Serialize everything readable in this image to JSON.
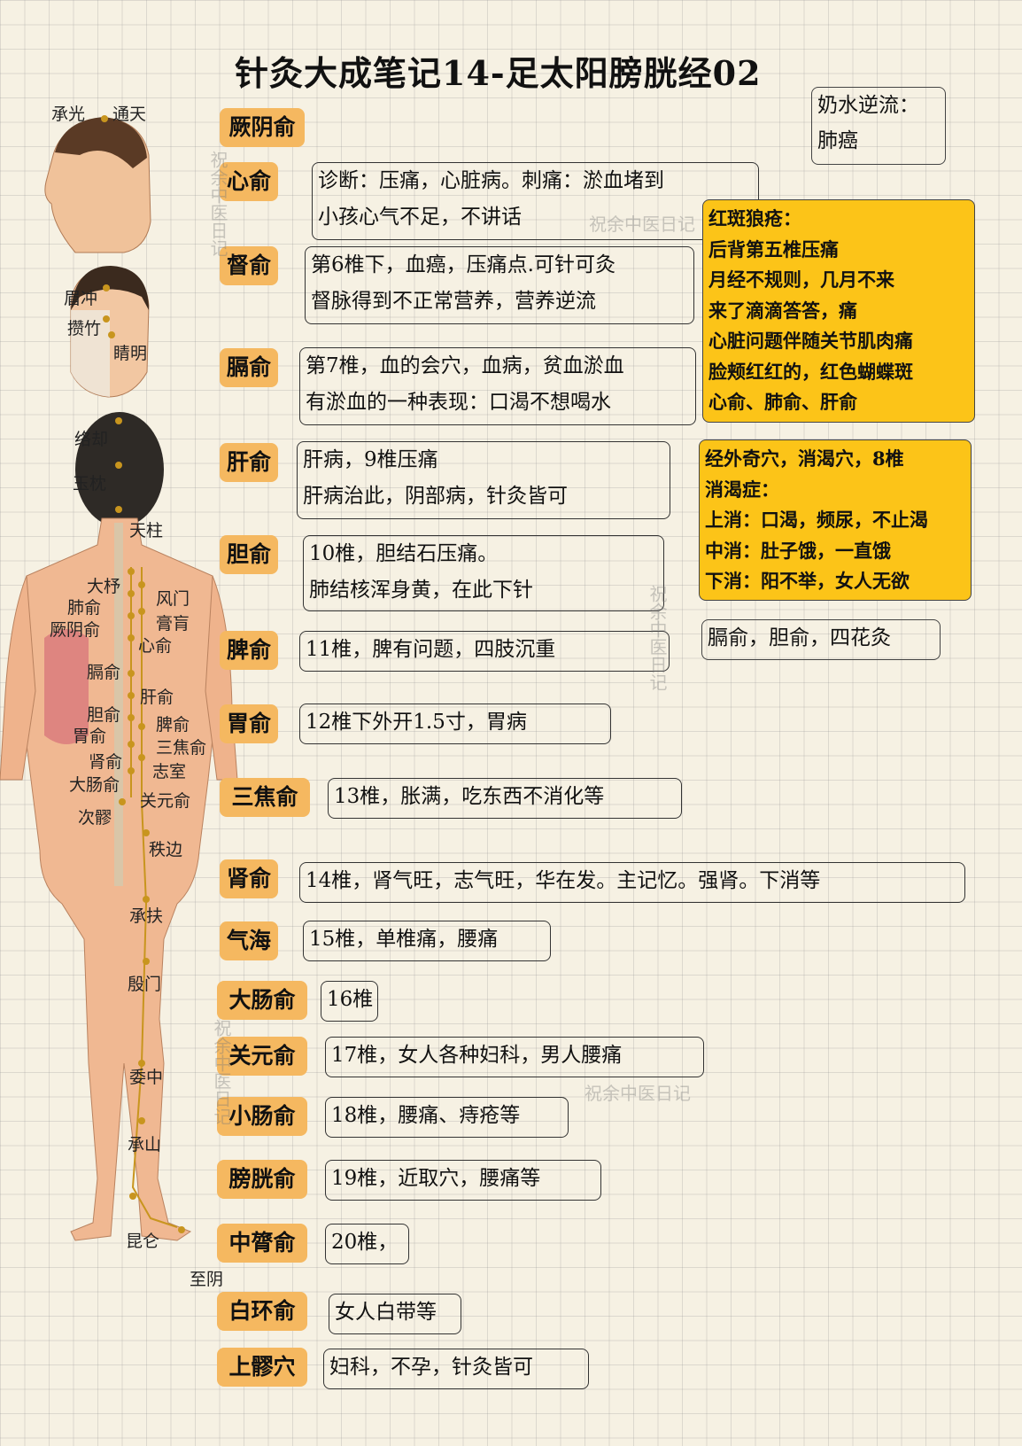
{
  "title": "针灸大成笔记14-足太阳膀胱经02",
  "watermark": "祝余中医日记",
  "figure": {
    "head_points": [
      "承光",
      "通天"
    ],
    "face_points": [
      "眉冲",
      "攒竹",
      "睛明"
    ],
    "body_points": [
      "络却",
      "玉枕",
      "天柱",
      "大杼",
      "风门",
      "肺俞",
      "膏肓",
      "厥阴俞",
      "心俞",
      "膈俞",
      "肝俞",
      "胆俞",
      "脾俞",
      "胃俞",
      "三焦俞",
      "肾俞",
      "志室",
      "大肠俞",
      "关元俞",
      "次髎",
      "秩边",
      "承扶",
      "殷门",
      "委中",
      "承山",
      "昆仑",
      "至阴"
    ]
  },
  "entries": [
    {
      "name": "厥阴俞",
      "lines": []
    },
    {
      "name": "心俞",
      "lines": [
        "诊断：压痛，心脏病。刺痛：淤血堵到",
        "小孩心气不足，不讲话"
      ]
    },
    {
      "name": "督俞",
      "lines": [
        "第6椎下，血癌，压痛点.可针可灸",
        "督脉得到不正常营养，营养逆流"
      ]
    },
    {
      "name": "膈俞",
      "lines": [
        "第7椎，血的会穴，血病，贫血淤血",
        "有淤血的一种表现：口渴不想喝水"
      ]
    },
    {
      "name": "肝俞",
      "lines": [
        "肝病，9椎压痛",
        "肝病治此，阴部病，针灸皆可"
      ]
    },
    {
      "name": "胆俞",
      "lines": [
        "10椎，胆结石压痛。",
        "肺结核浑身黄，在此下针"
      ]
    },
    {
      "name": "脾俞",
      "lines": [
        "11椎，脾有问题，四肢沉重"
      ]
    },
    {
      "name": "胃俞",
      "lines": [
        "12椎下外开1.5寸，胃病"
      ]
    },
    {
      "name": "三焦俞",
      "lines": [
        "13椎，胀满，吃东西不消化等"
      ]
    },
    {
      "name": "肾俞",
      "lines": [
        "14椎，肾气旺，志气旺，华在发。主记忆。强肾。下消等"
      ]
    },
    {
      "name": "气海",
      "lines": [
        "15椎，单椎痛，腰痛"
      ]
    },
    {
      "name": "大肠俞",
      "lines": [
        "16椎"
      ]
    },
    {
      "name": "关元俞",
      "lines": [
        "17椎，女人各种妇科，男人腰痛"
      ]
    },
    {
      "name": "小肠俞",
      "lines": [
        "18椎，腰痛、痔疮等"
      ]
    },
    {
      "name": "膀胱俞",
      "lines": [
        "19椎，近取穴，腰痛等"
      ]
    },
    {
      "name": "中膂俞",
      "lines": [
        "20椎，"
      ]
    },
    {
      "name": "白环俞",
      "lines": [
        "女人白带等"
      ]
    },
    {
      "name": "上髎穴",
      "lines": [
        "妇科，不孕，针灸皆可"
      ]
    }
  ],
  "side_notes": {
    "milk": [
      "奶水逆流：",
      "肺癌"
    ],
    "lupus": [
      "红斑狼疮：",
      "后背第五椎压痛",
      "月经不规则，几月不来",
      "来了滴滴答答，痛",
      "心脏问题伴随关节肌肉痛",
      "脸颊红红的，红色蝴蝶斑",
      "心俞、肺俞、肝俞"
    ],
    "diabetes": [
      "经外奇穴，消渴穴，8椎",
      "消渴症：",
      "上消：口渴，频尿，不止渴",
      "中消：肚子饿，一直饿",
      "下消：阳不举，女人无欲"
    ],
    "flower": [
      "膈俞，胆俞，四花灸"
    ]
  },
  "colors": {
    "label_bg": "#f5b860",
    "note_bg": "#fcc418",
    "paper": "#f6f1e3"
  }
}
